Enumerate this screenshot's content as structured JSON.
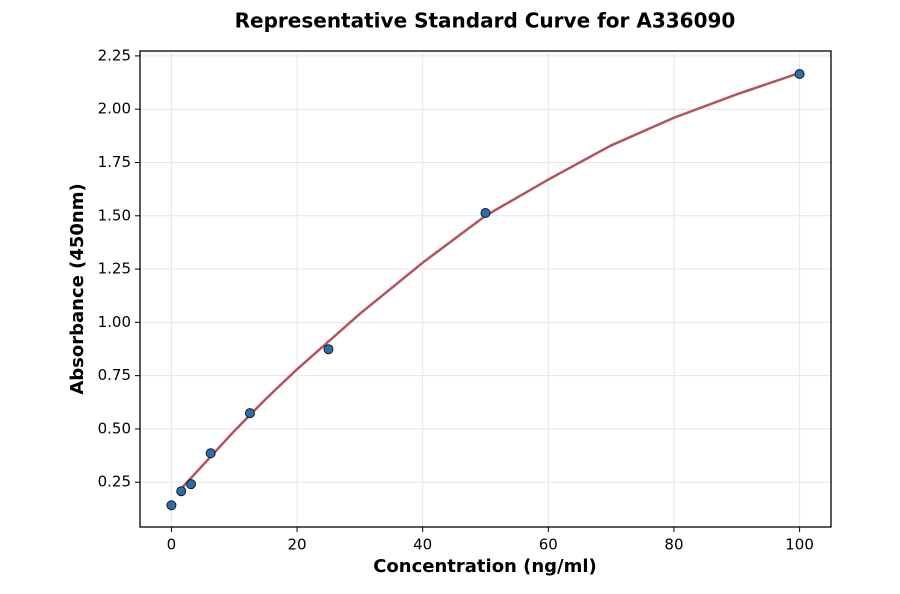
{
  "chart_data": {
    "type": "scatter",
    "title": "Representative Standard Curve for A336090",
    "x_label": "Concentration (ng/ml)",
    "y_label": "Absorbance (450nm)",
    "xlim": [
      -5,
      105
    ],
    "xticks": [
      0,
      20,
      40,
      60,
      80,
      100
    ],
    "ylim": [
      0.04,
      2.273
    ],
    "yticks": [
      0.25,
      {
        "value": 0.5,
        "label": "0.50"
      },
      0.75,
      {
        "value": 1.0,
        "label": "1.00"
      },
      1.25,
      {
        "value": 1.5,
        "label": "1.50"
      },
      1.75,
      {
        "value": 2.0,
        "label": "2.00"
      },
      2.25
    ],
    "grid": true,
    "series": [
      {
        "type": "scatter",
        "color": "#2a6fad",
        "x": [
          0,
          1.5625,
          3.125,
          6.25,
          12.5,
          25,
          50,
          100
        ],
        "values": [
          0.142,
          0.208,
          0.241,
          0.386,
          0.574,
          0.874,
          1.513,
          2.165
        ]
      },
      {
        "type": "line",
        "color": "#b5525c",
        "x": [
          1.5625,
          5,
          10,
          15,
          20,
          25,
          30,
          40,
          50,
          60,
          70,
          80,
          90,
          100
        ],
        "values": [
          0.22,
          0.33,
          0.49,
          0.64,
          0.78,
          0.91,
          1.04,
          1.28,
          1.5,
          1.67,
          1.83,
          1.96,
          2.07,
          2.17
        ]
      }
    ]
  }
}
